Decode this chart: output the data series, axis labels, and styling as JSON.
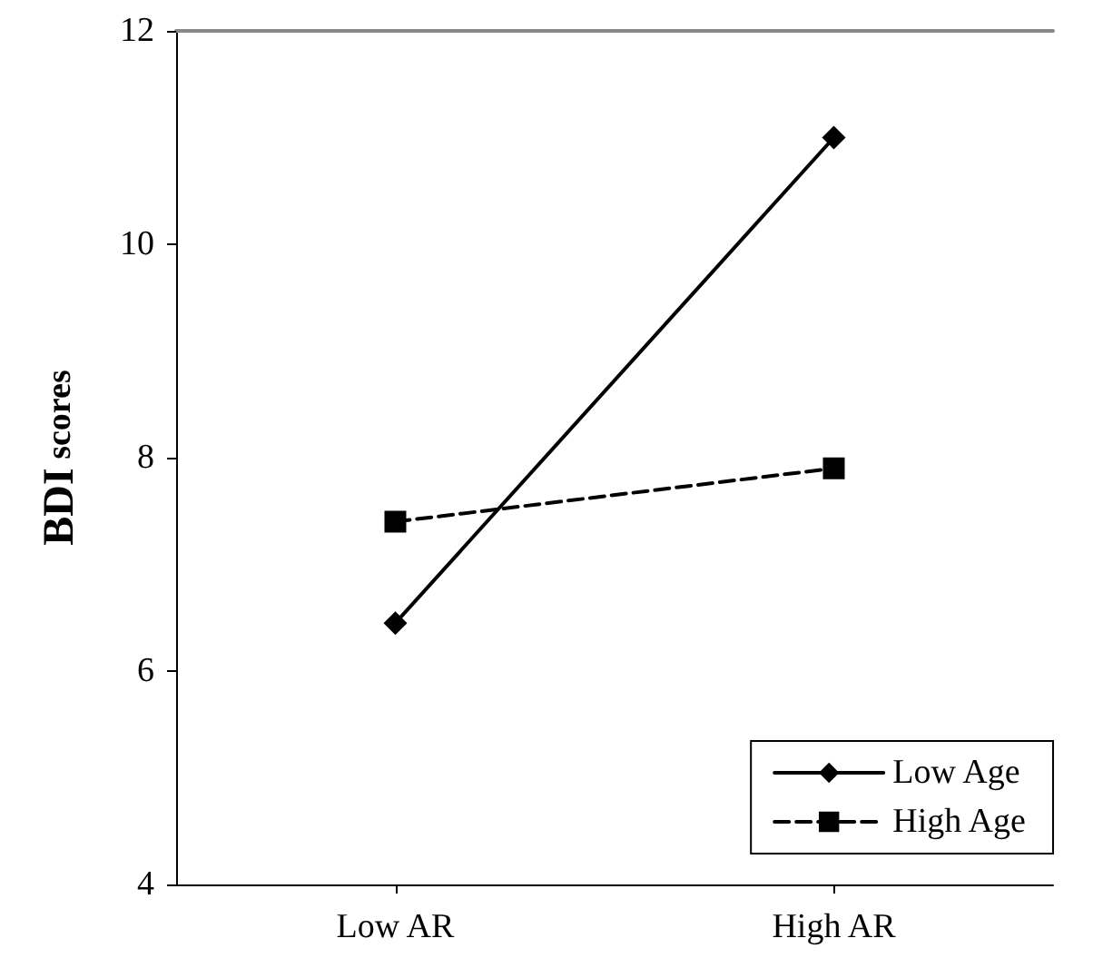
{
  "chart_data": {
    "type": "line",
    "ylabel": "BDI scores",
    "categories": [
      "Low AR",
      "High AR"
    ],
    "series": [
      {
        "name": "Low Age",
        "color": "#000000",
        "values": [
          6.45,
          11.0
        ],
        "marker": "diamond",
        "line_style": "solid"
      },
      {
        "name": "High Age",
        "color": "#000000",
        "values": [
          7.4,
          7.9
        ],
        "marker": "square",
        "line_style": "dashed"
      }
    ],
    "ylim": [
      4,
      12
    ],
    "yticks": [
      4,
      6,
      8,
      10,
      12
    ],
    "grid": false,
    "legend": "bottom right"
  }
}
